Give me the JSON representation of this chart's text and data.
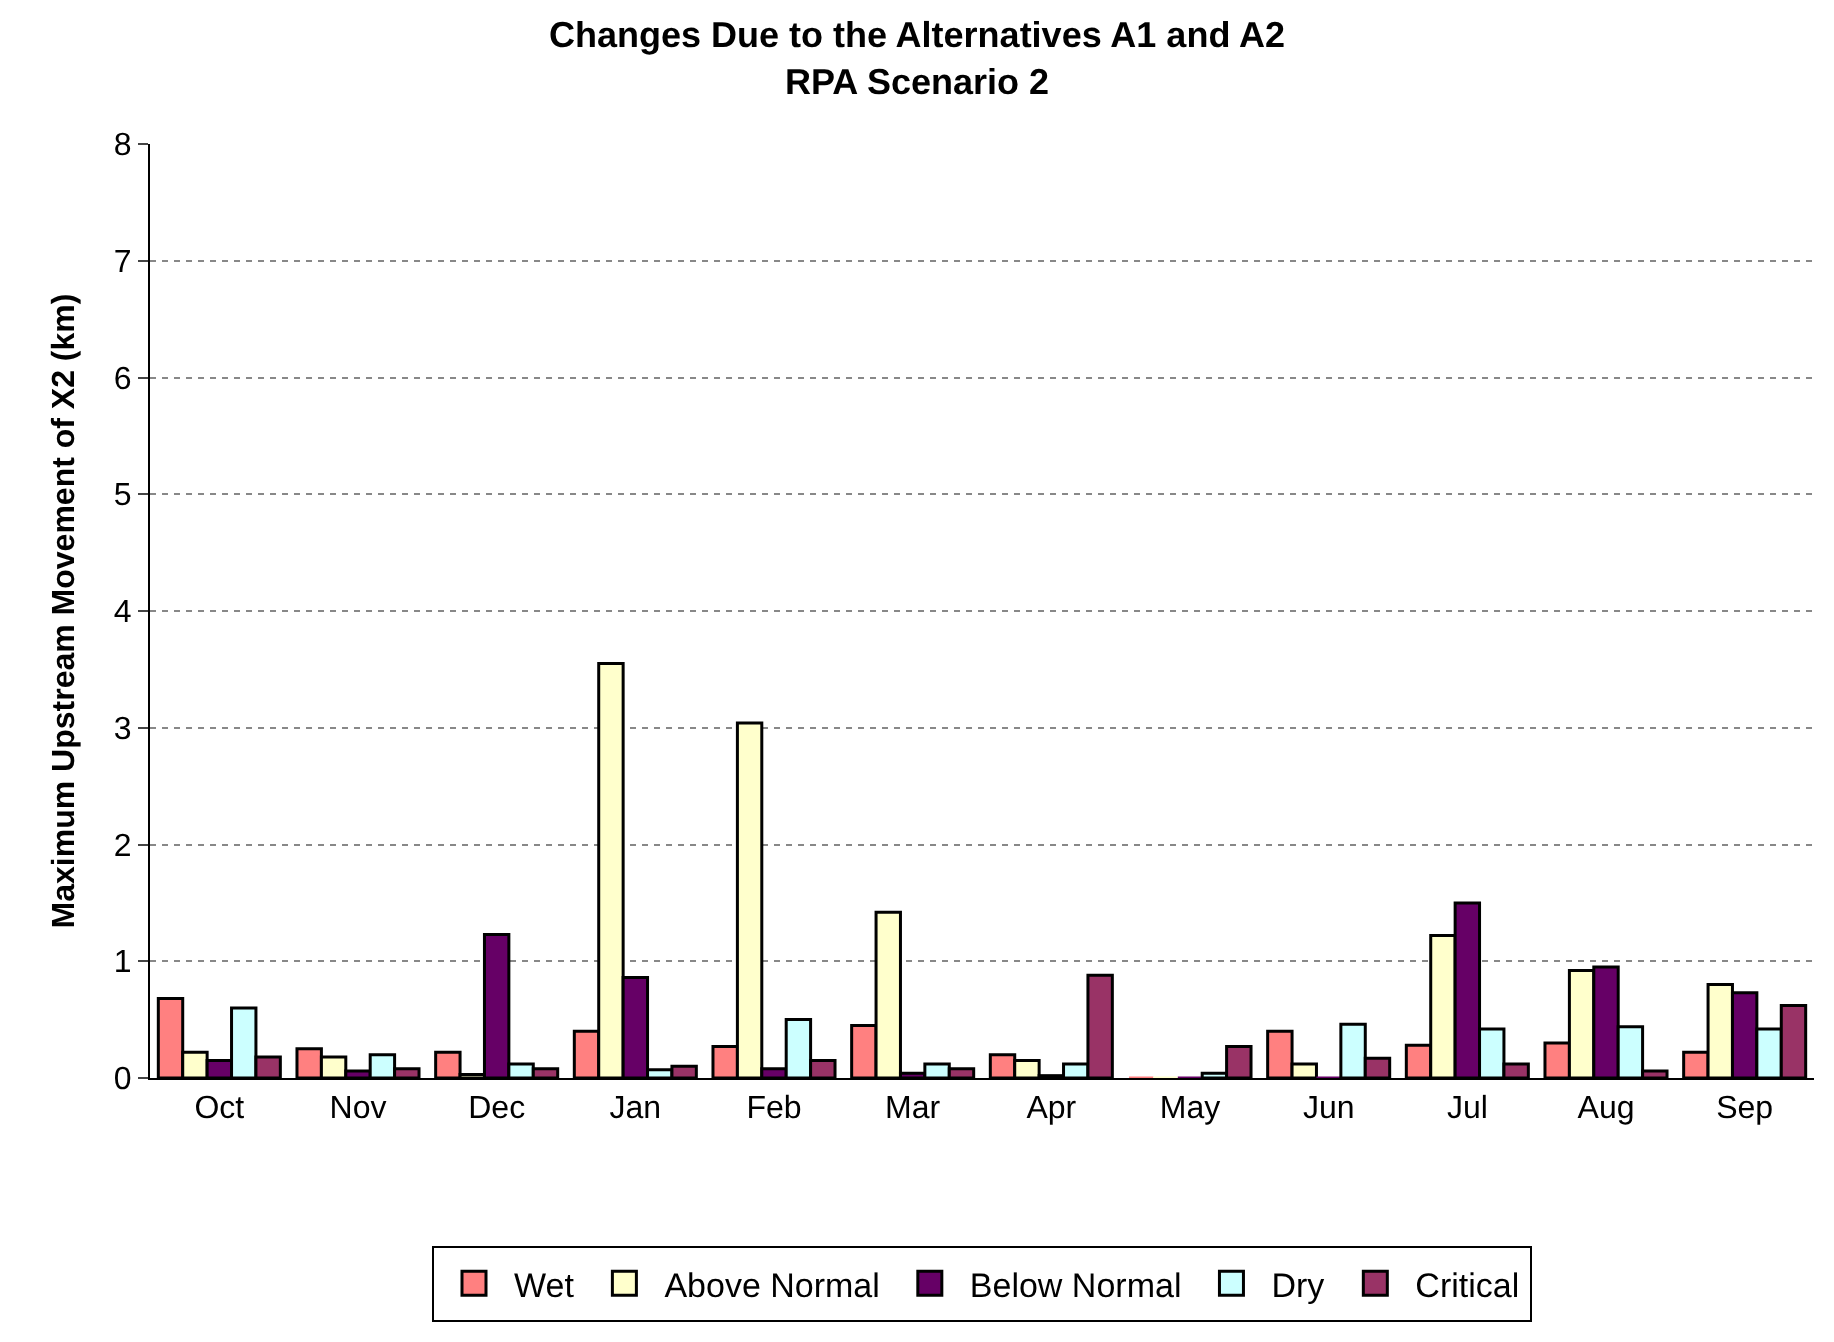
{
  "chart_data": {
    "type": "bar",
    "title": "Changes Due to the Alternatives A1 and A2",
    "subtitle": "RPA Scenario 2",
    "ylabel": "Maximum Upstream Movement of X2 (km)",
    "categories": [
      "Oct",
      "Nov",
      "Dec",
      "Jan",
      "Feb",
      "Mar",
      "Apr",
      "May",
      "Jun",
      "Jul",
      "Aug",
      "Sep"
    ],
    "series": [
      {
        "name": "Wet",
        "color": "#ff8080",
        "values": [
          0.68,
          0.25,
          0.22,
          0.4,
          0.27,
          0.45,
          0.2,
          0,
          0.4,
          0.28,
          0.3,
          0.22
        ]
      },
      {
        "name": "Above Normal",
        "color": "#ffffcc",
        "values": [
          0.22,
          0.18,
          0.03,
          3.55,
          3.04,
          1.42,
          0.15,
          0,
          0.12,
          1.22,
          0.92,
          0.8
        ]
      },
      {
        "name": "Below Normal",
        "color": "#660066",
        "values": [
          0.15,
          0.06,
          1.23,
          0.86,
          0.08,
          0.04,
          0.02,
          0,
          0,
          1.5,
          0.95,
          0.73
        ]
      },
      {
        "name": "Dry",
        "color": "#ccffff",
        "values": [
          0.6,
          0.2,
          0.12,
          0.07,
          0.5,
          0.12,
          0.12,
          0.04,
          0.46,
          0.42,
          0.44,
          0.42
        ]
      },
      {
        "name": "Critical",
        "color": "#993366",
        "values": [
          0.18,
          0.08,
          0.08,
          0.1,
          0.15,
          0.08,
          0.88,
          0.27,
          0.17,
          0.12,
          0.06,
          0.62
        ]
      }
    ],
    "ylim": [
      0,
      8
    ],
    "yticks": [
      0,
      1,
      2,
      3,
      4,
      5,
      6,
      7,
      8
    ],
    "grid": "y",
    "legend": "bottom"
  }
}
